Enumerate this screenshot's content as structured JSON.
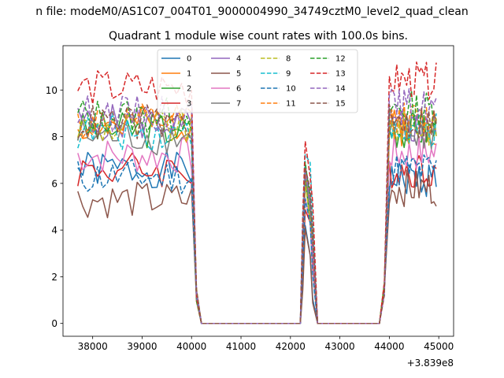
{
  "figure": {
    "suptitle": "n file: modeM0/AS1C07_004T01_9000004990_34749cztM0_level2_quad_clean",
    "offset_text": "+3.839e8"
  },
  "chart_data": {
    "type": "line",
    "title": "Quadrant 1 module wise count rates with 100.0s bins.",
    "xlabel": "",
    "ylabel": "",
    "xlim": [
      37400,
      45300
    ],
    "ylim": [
      -0.55,
      11.9
    ],
    "x_ticks": [
      38000,
      39000,
      40000,
      41000,
      42000,
      43000,
      44000,
      45000
    ],
    "x_tick_labels": [
      "38000",
      "39000",
      "40000",
      "41000",
      "42000",
      "43000",
      "44000",
      "45000"
    ],
    "y_ticks": [
      0,
      2,
      4,
      6,
      8,
      10
    ],
    "y_tick_labels": [
      "0",
      "2",
      "4",
      "6",
      "8",
      "10"
    ],
    "grid": false,
    "legend_position": "top-center",
    "legend_columns": 4,
    "segments": [
      {
        "start": 37700,
        "end": 40000
      },
      {
        "start": 42200,
        "end": 42500
      },
      {
        "start": 43900,
        "end": 44950
      }
    ],
    "series": [
      {
        "name": "0",
        "color": "#1f77b4",
        "dash": "solid",
        "gap_zero": true,
        "seed": 1,
        "levels": [
          6.6,
          4.2,
          6.2
        ]
      },
      {
        "name": "1",
        "color": "#ff7f0e",
        "dash": "solid",
        "gap_zero": true,
        "seed": 2,
        "levels": [
          8.5,
          6.3,
          8.4
        ]
      },
      {
        "name": "2",
        "color": "#2ca02c",
        "dash": "solid",
        "gap_zero": true,
        "seed": 3,
        "levels": [
          8.3,
          6.0,
          8.3
        ]
      },
      {
        "name": "3",
        "color": "#d62728",
        "dash": "solid",
        "gap_zero": true,
        "seed": 4,
        "levels": [
          6.6,
          5.0,
          6.6
        ]
      },
      {
        "name": "4",
        "color": "#9467bd",
        "dash": "solid",
        "gap_zero": true,
        "seed": 5,
        "levels": [
          8.6,
          6.4,
          8.4
        ]
      },
      {
        "name": "5",
        "color": "#8c564b",
        "dash": "solid",
        "gap_zero": true,
        "seed": 6,
        "levels": [
          5.3,
          4.0,
          5.8
        ]
      },
      {
        "name": "6",
        "color": "#e377c2",
        "dash": "solid",
        "gap_zero": true,
        "seed": 7,
        "levels": [
          7.2,
          5.6,
          7.3
        ]
      },
      {
        "name": "7",
        "color": "#7f7f7f",
        "dash": "solid",
        "gap_zero": true,
        "seed": 8,
        "levels": [
          8.0,
          6.3,
          8.1
        ]
      },
      {
        "name": "8",
        "color": "#bcbd22",
        "dash": "dashed",
        "gap_zero": true,
        "seed": 9,
        "levels": [
          8.4,
          6.1,
          8.4
        ]
      },
      {
        "name": "9",
        "color": "#17becf",
        "dash": "dashed",
        "gap_zero": true,
        "seed": 10,
        "levels": [
          8.2,
          7.6,
          8.2
        ]
      },
      {
        "name": "10",
        "color": "#1f77b4",
        "dash": "dashed",
        "gap_zero": true,
        "seed": 11,
        "levels": [
          6.3,
          5.2,
          6.6
        ]
      },
      {
        "name": "11",
        "color": "#ff7f0e",
        "dash": "dashed",
        "gap_zero": true,
        "seed": 12,
        "levels": [
          8.6,
          6.6,
          8.7
        ]
      },
      {
        "name": "12",
        "color": "#2ca02c",
        "dash": "dashed",
        "gap_zero": true,
        "seed": 13,
        "levels": [
          8.9,
          6.6,
          9.2
        ]
      },
      {
        "name": "13",
        "color": "#d62728",
        "dash": "dashed",
        "gap_zero": true,
        "seed": 14,
        "levels": [
          10.1,
          7.8,
          10.4
        ]
      },
      {
        "name": "14",
        "color": "#9467bd",
        "dash": "dashed",
        "gap_zero": true,
        "seed": 15,
        "levels": [
          9.0,
          6.9,
          9.3
        ]
      },
      {
        "name": "15",
        "color": "#8c564b",
        "dash": "dashed",
        "gap_zero": true,
        "seed": 16,
        "levels": [
          8.6,
          6.5,
          8.6
        ]
      }
    ]
  }
}
